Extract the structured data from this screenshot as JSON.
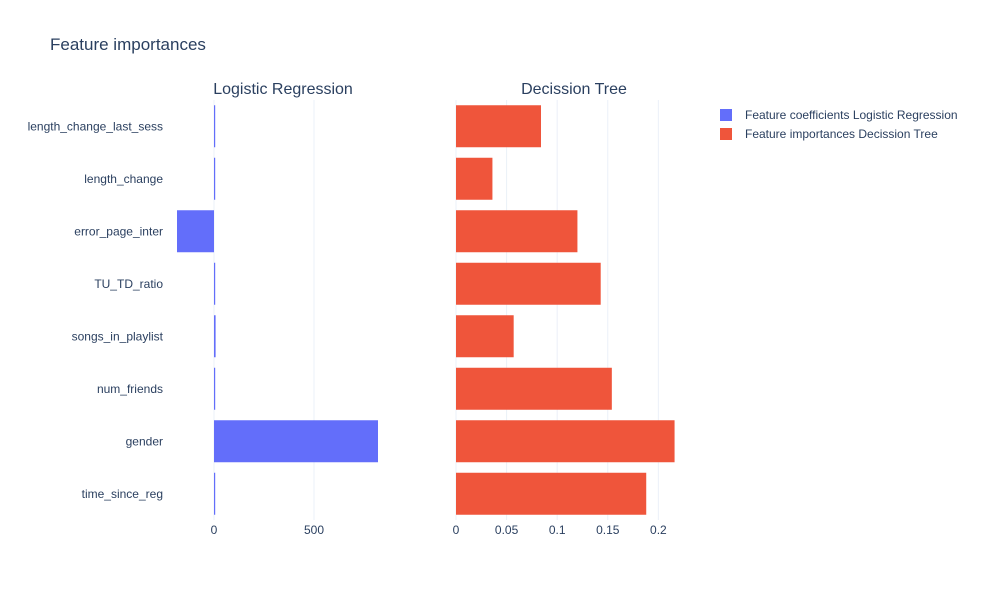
{
  "chart_data": {
    "title": "Feature importances",
    "type": "bar",
    "orientation": "horizontal",
    "categories": [
      "length_change_last_sess",
      "length_change",
      "error_page_inter",
      "TU_TD_ratio",
      "songs_in_playlist",
      "num_friends",
      "gender",
      "time_since_reg"
    ],
    "grid": true,
    "legend_position": "top-right",
    "subplots": [
      {
        "subtitle": "Logistic Regression",
        "series_name": "Feature coefficients Logistic Regression",
        "color": "#636efa",
        "xlim": [
          -190,
          880
        ],
        "xticks": [
          0,
          500
        ],
        "xtick_labels": [
          "0",
          "500"
        ],
        "values": [
          0,
          2,
          -185,
          3,
          8,
          1,
          820,
          0
        ]
      },
      {
        "subtitle": "Decission Tree",
        "series_name": "Feature importances Decission Tree",
        "color": "#ef553b",
        "xlim": [
          0,
          0.2273
        ],
        "xticks": [
          0,
          0.05,
          0.1,
          0.15,
          0.2
        ],
        "xtick_labels": [
          "0",
          "0.05",
          "0.1",
          "0.15",
          "0.2"
        ],
        "values": [
          0.084,
          0.036,
          0.12,
          0.143,
          0.057,
          0.154,
          0.216,
          0.188
        ]
      }
    ]
  }
}
